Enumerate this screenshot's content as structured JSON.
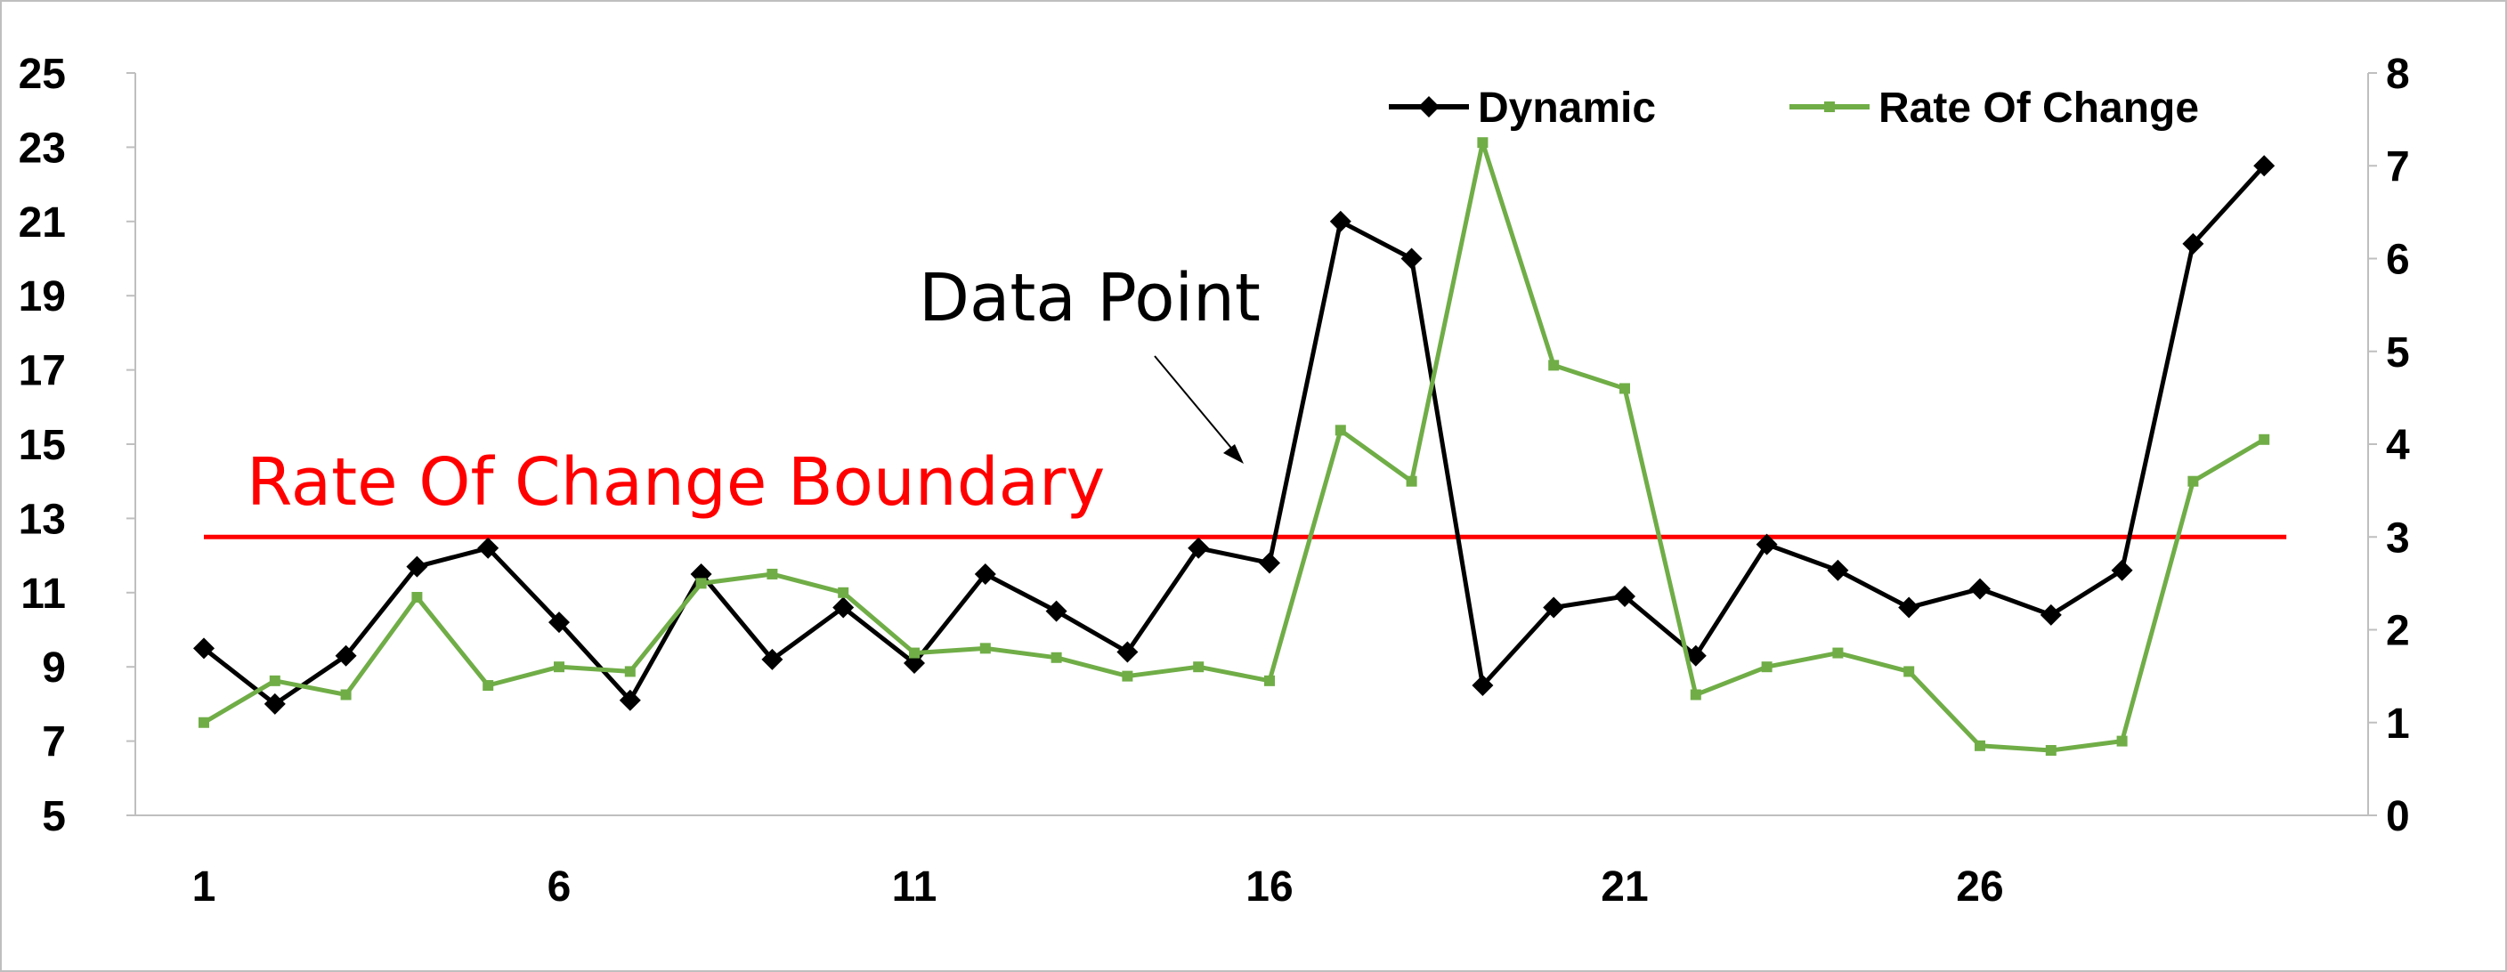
{
  "chart_data": {
    "type": "line",
    "x": [
      1,
      2,
      3,
      4,
      5,
      6,
      7,
      8,
      9,
      10,
      11,
      12,
      13,
      14,
      15,
      16,
      17,
      18,
      19,
      20,
      21,
      22,
      23,
      24,
      25,
      26,
      27,
      28,
      29,
      30
    ],
    "x_ticks": [
      "1",
      "6",
      "11",
      "16",
      "21",
      "26"
    ],
    "y_left_ticks": [
      "5",
      "7",
      "9",
      "11",
      "13",
      "15",
      "17",
      "19",
      "21",
      "23",
      "25"
    ],
    "y_right_ticks": [
      "0",
      "1",
      "2",
      "3",
      "4",
      "5",
      "6",
      "7",
      "8"
    ],
    "y_left_range": [
      5,
      25
    ],
    "y_right_range": [
      0,
      8
    ],
    "grid": false,
    "legend_position": "top-right",
    "series": [
      {
        "name": "Dynamic",
        "axis": "left",
        "color": "#000000",
        "marker": "diamond",
        "values": [
          9.5,
          8.0,
          9.3,
          11.7,
          12.2,
          10.2,
          8.1,
          11.5,
          9.2,
          10.6,
          9.1,
          11.5,
          10.5,
          9.4,
          12.2,
          11.8,
          21.0,
          20.0,
          8.5,
          10.6,
          10.9,
          9.3,
          12.3,
          11.6,
          10.6,
          11.1,
          10.4,
          11.6,
          20.4,
          22.5
        ]
      },
      {
        "name": "Rate Of Change",
        "axis": "right",
        "color": "#70ad47",
        "marker": "square",
        "values": [
          1.0,
          1.45,
          1.3,
          2.35,
          1.4,
          1.6,
          1.55,
          2.5,
          2.6,
          2.4,
          1.75,
          1.8,
          1.7,
          1.5,
          1.6,
          1.45,
          4.15,
          3.6,
          7.25,
          4.85,
          4.6,
          1.3,
          1.6,
          1.75,
          1.55,
          0.75,
          0.7,
          0.8,
          3.6,
          4.05
        ]
      }
    ],
    "boundary": {
      "label": "Rate Of Change Boundary",
      "value": 3,
      "axis": "right",
      "color": "#ff0000"
    },
    "annotation": {
      "text": "Data Point"
    }
  }
}
